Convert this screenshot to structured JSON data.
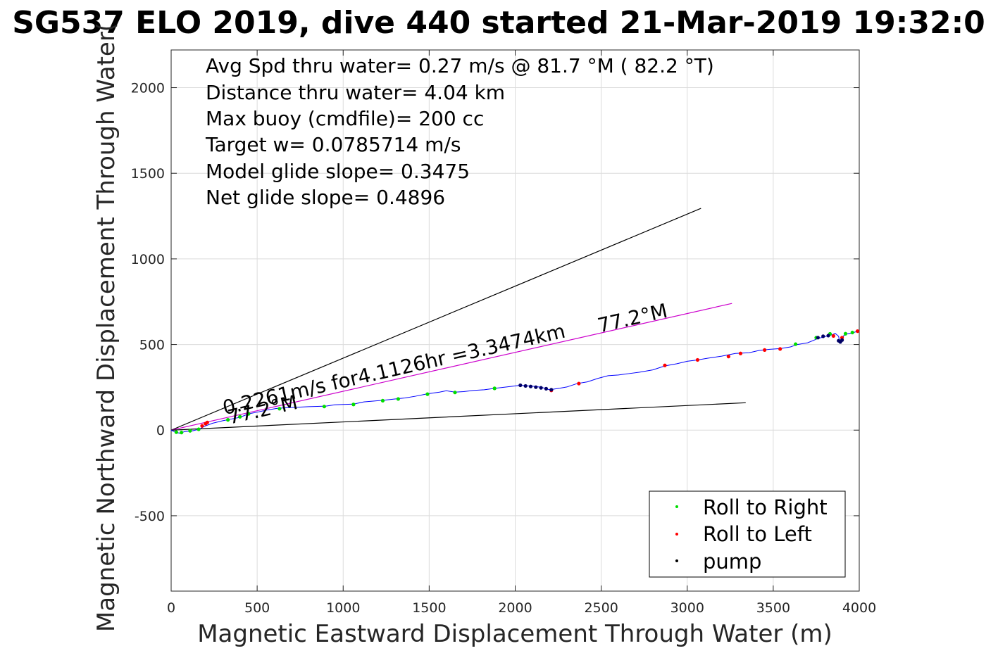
{
  "chart_data": {
    "type": "scatter",
    "title": "SG537 ELO 2019, dive 440 started 21-Mar-2019 19:32:0",
    "xlabel": "Magnetic Eastward Displacement Through Water (m)",
    "ylabel": "Magnetic Northward Displacement Through Water(",
    "xlim": [
      0,
      4000
    ],
    "ylim": [
      -940,
      2220
    ],
    "grid": true,
    "x_ticks": [
      0,
      500,
      1000,
      1500,
      2000,
      2500,
      3000,
      3500,
      4000
    ],
    "y_ticks": [
      -500,
      0,
      500,
      1000,
      1500,
      2000
    ],
    "info_lines": [
      "Avg Spd thru water=  0.27 m/s @  81.7 °M ( 82.2 °T)",
      "Distance thru water=  4.04 km",
      "Max buoy (cmdfile)= 200 cc",
      "Target w= 0.0785714 m/s",
      "Model glide slope= 0.3475",
      "Net glide slope= 0.4896"
    ],
    "annotations": [
      {
        "text": "0.2261m/s for4.1126hr =3.3474km",
        "x": 310,
        "y": 90,
        "rotation_deg": 12.8
      },
      {
        "text": "77.2°M",
        "x": 340,
        "y": 35,
        "rotation_deg": 12.8
      },
      {
        "text": "77.2°M",
        "x": 2490,
        "y": 570,
        "rotation_deg": 12.8
      }
    ],
    "reference_lines": [
      {
        "name": "upper",
        "color": "#000000",
        "points": [
          [
            0,
            0
          ],
          [
            3080,
            1295
          ]
        ]
      },
      {
        "name": "current",
        "color": "#cc00cc",
        "points": [
          [
            0,
            0
          ],
          [
            3260,
            740
          ]
        ]
      },
      {
        "name": "lower",
        "color": "#000000",
        "points": [
          [
            0,
            0
          ],
          [
            3340,
            160
          ]
        ]
      }
    ],
    "track": {
      "color": "#0000ff",
      "points": [
        [
          0,
          0
        ],
        [
          20,
          -10
        ],
        [
          50,
          -18
        ],
        [
          80,
          -8
        ],
        [
          120,
          -5
        ],
        [
          160,
          5
        ],
        [
          200,
          25
        ],
        [
          240,
          40
        ],
        [
          300,
          55
        ],
        [
          350,
          65
        ],
        [
          400,
          75
        ],
        [
          450,
          95
        ],
        [
          500,
          105
        ],
        [
          560,
          118
        ],
        [
          620,
          128
        ],
        [
          700,
          132
        ],
        [
          800,
          137
        ],
        [
          900,
          140
        ],
        [
          950,
          148
        ],
        [
          1000,
          150
        ],
        [
          1060,
          152
        ],
        [
          1120,
          165
        ],
        [
          1180,
          170
        ],
        [
          1240,
          175
        ],
        [
          1300,
          182
        ],
        [
          1360,
          188
        ],
        [
          1420,
          198
        ],
        [
          1490,
          212
        ],
        [
          1560,
          222
        ],
        [
          1600,
          230
        ],
        [
          1650,
          222
        ],
        [
          1700,
          225
        ],
        [
          1760,
          232
        ],
        [
          1820,
          236
        ],
        [
          1880,
          244
        ],
        [
          1950,
          252
        ],
        [
          2030,
          262
        ],
        [
          2080,
          258
        ],
        [
          2120,
          255
        ],
        [
          2160,
          248
        ],
        [
          2200,
          236
        ],
        [
          2260,
          245
        ],
        [
          2300,
          252
        ],
        [
          2360,
          272
        ],
        [
          2420,
          282
        ],
        [
          2480,
          302
        ],
        [
          2540,
          318
        ],
        [
          2600,
          322
        ],
        [
          2660,
          330
        ],
        [
          2720,
          338
        ],
        [
          2800,
          352
        ],
        [
          2870,
          375
        ],
        [
          2940,
          388
        ],
        [
          3000,
          402
        ],
        [
          3060,
          410
        ],
        [
          3120,
          420
        ],
        [
          3200,
          432
        ],
        [
          3280,
          448
        ],
        [
          3360,
          452
        ],
        [
          3420,
          466
        ],
        [
          3480,
          472
        ],
        [
          3540,
          476
        ],
        [
          3600,
          486
        ],
        [
          3640,
          500
        ],
        [
          3700,
          510
        ],
        [
          3760,
          535
        ],
        [
          3800,
          546
        ],
        [
          3840,
          556
        ],
        [
          3860,
          565
        ],
        [
          3880,
          548
        ],
        [
          3885,
          522
        ],
        [
          3900,
          528
        ],
        [
          3910,
          552
        ],
        [
          3930,
          562
        ],
        [
          3960,
          568
        ],
        [
          4000,
          580
        ]
      ]
    },
    "series": [
      {
        "name": "Roll to Right",
        "color": "#00dd00",
        "x": [
          30,
          60,
          110,
          160,
          330,
          400,
          450,
          630,
          890,
          1060,
          1230,
          1320,
          1490,
          1650,
          1880,
          3630,
          3750,
          3830,
          3920,
          3960
        ],
        "y": [
          -12,
          -14,
          -4,
          5,
          60,
          78,
          95,
          125,
          138,
          150,
          172,
          182,
          210,
          220,
          244,
          502,
          540,
          562,
          563,
          570
        ]
      },
      {
        "name": "Roll to Left",
        "color": "#ff0000",
        "x": [
          180,
          200,
          210,
          2210,
          2370,
          2870,
          3060,
          3240,
          3310,
          3450,
          3540,
          3850,
          3900,
          3990
        ],
        "y": [
          25,
          38,
          45,
          232,
          272,
          378,
          410,
          430,
          448,
          468,
          474,
          550,
          540,
          578
        ]
      },
      {
        "name": "pump",
        "color": "#000066",
        "x": [
          2030,
          2060,
          2090,
          2120,
          2150,
          2180,
          2210,
          3760,
          3790,
          3820,
          3880,
          3890,
          3900
        ],
        "y": [
          262,
          258,
          255,
          251,
          247,
          242,
          236,
          540,
          548,
          552,
          522,
          515,
          526
        ]
      }
    ],
    "legend": {
      "placement": "bottom-right",
      "entries": [
        "Roll to Right",
        "Roll to Left",
        "pump"
      ]
    }
  }
}
